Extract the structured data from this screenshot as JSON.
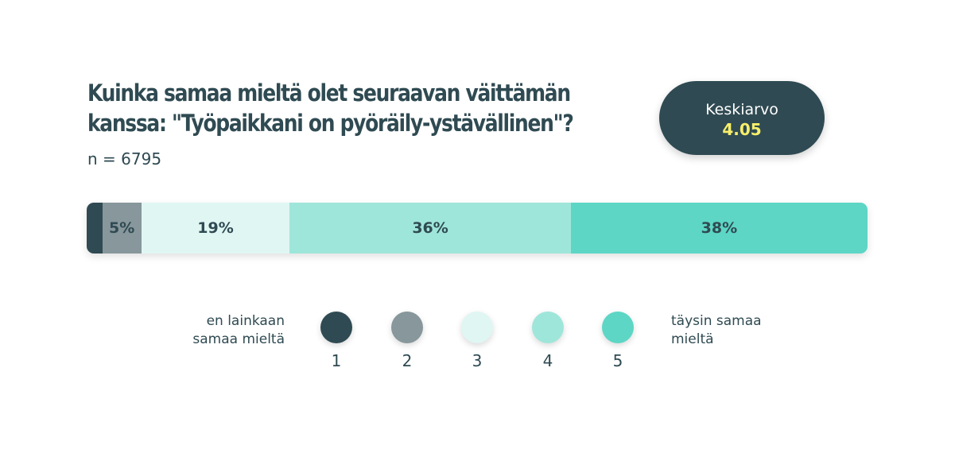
{
  "title_line1": "Kuinka samaa mieltä olet seuraavan väittämän",
  "title_line2": "kanssa: \"Työpaikkani on pyöräily-ystävällinen\"?",
  "sample": "n = 6795",
  "badge": {
    "label": "Keskiarvo",
    "value": "4.05"
  },
  "legend": {
    "left_line1": "en lainkaan",
    "left_line2": "samaa mieltä",
    "right_line1": "täysin samaa",
    "right_line2": "mieltä"
  },
  "chart_data": {
    "type": "bar",
    "orientation": "horizontal-stacked",
    "categories": [
      "1",
      "2",
      "3",
      "4",
      "5"
    ],
    "values": [
      2,
      5,
      19,
      36,
      38
    ],
    "labels": [
      "",
      "5%",
      "19%",
      "36%",
      "38%"
    ],
    "colors": [
      "#2f4a52",
      "#87979b",
      "#e0f6f3",
      "#9fe6da",
      "#5dd6c5"
    ],
    "unit": "%"
  }
}
